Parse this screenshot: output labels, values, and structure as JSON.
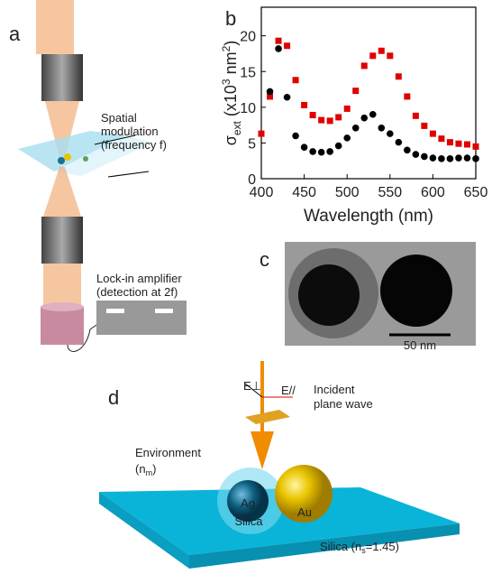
{
  "panels": {
    "a": "a",
    "b": "b",
    "c": "c",
    "d": "d"
  },
  "panel_a": {
    "modulation": [
      "Spatial",
      "modulation",
      "(frequency f)"
    ],
    "lockin": [
      "Lock-in amplifier",
      "(detection at 2f)"
    ]
  },
  "panel_c": {
    "scale_bar": "50 nm"
  },
  "panel_d": {
    "incident": [
      "Incident",
      "plane wave"
    ],
    "e_perp": "E⊥",
    "e_par": "E//",
    "environment": [
      "Environment",
      "(n",
      "m",
      ")"
    ],
    "ag": "Ag",
    "silica_shell": "Silica",
    "au": "Au",
    "substrate": [
      "Silica (n",
      "s",
      "=1.45)"
    ]
  },
  "chart_data": {
    "type": "scatter",
    "x_label": "Wavelength (nm)",
    "y_label": [
      "σ",
      "ext",
      " (x10",
      "3",
      " nm",
      "2",
      ")"
    ],
    "xlim": [
      400,
      650
    ],
    "xticks": [
      400,
      450,
      500,
      550,
      600,
      650
    ],
    "ylim": [
      0,
      24
    ],
    "yticks": [
      0,
      5,
      10,
      15,
      20
    ],
    "series": [
      {
        "color": "#e00000",
        "marker": "square",
        "x": [
          400,
          410,
          420,
          430,
          440,
          450,
          460,
          470,
          480,
          490,
          500,
          510,
          520,
          530,
          540,
          550,
          560,
          570,
          580,
          590,
          600,
          610,
          620,
          630,
          640,
          650
        ],
        "values": [
          6.3,
          11.5,
          19.3,
          18.6,
          13.8,
          10.3,
          8.9,
          8.2,
          8.1,
          8.6,
          9.8,
          12.3,
          15.8,
          17.2,
          17.9,
          17.2,
          14.3,
          11.5,
          8.8,
          7.4,
          6.3,
          5.6,
          5.1,
          4.9,
          4.8,
          4.5
        ]
      },
      {
        "color": "#000000",
        "marker": "circle",
        "x": [
          410,
          420,
          430,
          440,
          450,
          460,
          470,
          480,
          490,
          500,
          510,
          520,
          530,
          540,
          550,
          560,
          570,
          580,
          590,
          600,
          610,
          620,
          630,
          640,
          650
        ],
        "values": [
          12.2,
          18.2,
          11.4,
          6.0,
          4.4,
          3.8,
          3.7,
          3.8,
          4.6,
          5.7,
          7.1,
          8.5,
          9.0,
          7.1,
          6.3,
          5.1,
          4.0,
          3.4,
          3.1,
          2.9,
          2.8,
          2.8,
          2.9,
          2.9,
          2.8
        ]
      }
    ]
  }
}
